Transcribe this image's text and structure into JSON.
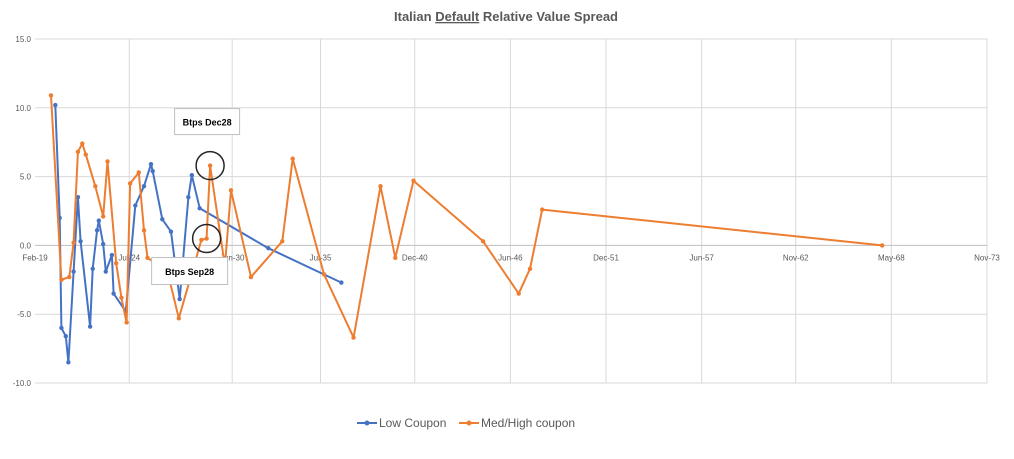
{
  "chart_data": {
    "type": "line",
    "title": "Italian Default Relative Value Spread",
    "title_parts": {
      "pre": "Italian ",
      "underlined": "Default",
      "post": " Relative Value Spread"
    },
    "xlabel": "",
    "ylabel": "",
    "ylim": [
      -10.0,
      15.0
    ],
    "y_ticks": [
      "15.0",
      "10.0",
      "5.0",
      "0.0",
      "-5.0",
      "-10.0"
    ],
    "y_tick_values": [
      15,
      10,
      5,
      0,
      -5,
      -10
    ],
    "x_tick_labels": [
      "Feb-19",
      "Jul-24",
      "Jun-30",
      "Jul-35",
      "Dec-40",
      "Jun-46",
      "Dec-51",
      "Jun-57",
      "Nov-62",
      "May-68",
      "Nov-73"
    ],
    "x_tick_values": [
      2019.08,
      2024.5,
      2030.42,
      2035.5,
      2040.92,
      2046.42,
      2051.92,
      2057.42,
      2062.83,
      2068.33,
      2073.83
    ],
    "xlim": [
      2019.08,
      2073.83
    ],
    "grid": true,
    "legend_position": "bottom",
    "series": [
      {
        "name": "Low Coupon",
        "color": "#4472C4",
        "points": [
          [
            2020.25,
            10.2
          ],
          [
            2020.5,
            2.0
          ],
          [
            2020.6,
            -6.0
          ],
          [
            2020.85,
            -6.6
          ],
          [
            2021.0,
            -8.5
          ],
          [
            2021.3,
            -1.9
          ],
          [
            2021.55,
            3.5
          ],
          [
            2021.7,
            0.3
          ],
          [
            2022.25,
            -5.9
          ],
          [
            2022.4,
            -1.7
          ],
          [
            2022.65,
            1.1
          ],
          [
            2022.75,
            1.8
          ],
          [
            2023.0,
            0.1
          ],
          [
            2023.15,
            -1.9
          ],
          [
            2023.5,
            -0.7
          ],
          [
            2023.6,
            -3.5
          ],
          [
            2024.3,
            -4.8
          ],
          [
            2024.85,
            2.9
          ],
          [
            2025.35,
            4.3
          ],
          [
            2025.75,
            5.9
          ],
          [
            2025.85,
            5.4
          ],
          [
            2026.4,
            1.9
          ],
          [
            2026.9,
            1.0
          ],
          [
            2027.4,
            -3.9
          ],
          [
            2027.9,
            3.5
          ],
          [
            2028.1,
            5.1
          ],
          [
            2028.55,
            2.7
          ],
          [
            2032.5,
            -0.2
          ],
          [
            2036.7,
            -2.7
          ]
        ]
      },
      {
        "name": "Med/High coupon",
        "color": "#ED7D31",
        "points": [
          [
            2020.0,
            10.9
          ],
          [
            2020.6,
            -2.5
          ],
          [
            2021.05,
            -2.3
          ],
          [
            2021.3,
            0.2
          ],
          [
            2021.55,
            6.8
          ],
          [
            2021.8,
            7.4
          ],
          [
            2022.0,
            6.6
          ],
          [
            2022.55,
            4.3
          ],
          [
            2023.0,
            2.1
          ],
          [
            2023.25,
            6.1
          ],
          [
            2023.75,
            -1.3
          ],
          [
            2024.05,
            -3.8
          ],
          [
            2024.35,
            -5.6
          ],
          [
            2024.55,
            4.5
          ],
          [
            2025.05,
            5.3
          ],
          [
            2025.35,
            1.1
          ],
          [
            2025.55,
            -0.9
          ],
          [
            2026.7,
            -1.9
          ],
          [
            2027.35,
            -5.3
          ],
          [
            2028.65,
            0.4
          ],
          [
            2028.95,
            0.5
          ],
          [
            2029.15,
            5.8
          ],
          [
            2030.0,
            -1.5
          ],
          [
            2030.35,
            4.0
          ],
          [
            2031.5,
            -2.3
          ],
          [
            2033.3,
            0.3
          ],
          [
            2033.9,
            6.3
          ],
          [
            2035.7,
            -2.1
          ],
          [
            2037.4,
            -6.7
          ],
          [
            2038.95,
            4.3
          ],
          [
            2039.8,
            -0.9
          ],
          [
            2040.85,
            4.7
          ],
          [
            2044.85,
            0.3
          ],
          [
            2046.9,
            -3.5
          ],
          [
            2047.55,
            -1.7
          ],
          [
            2048.25,
            2.6
          ],
          [
            2067.8,
            0.0
          ]
        ]
      }
    ],
    "annotations": [
      {
        "text": "Btps Dec28",
        "x": 2029.15,
        "y": 5.8,
        "marker": "circle"
      },
      {
        "text": "Btps Sep28",
        "x": 2028.95,
        "y": 0.5,
        "marker": "circle"
      }
    ]
  }
}
